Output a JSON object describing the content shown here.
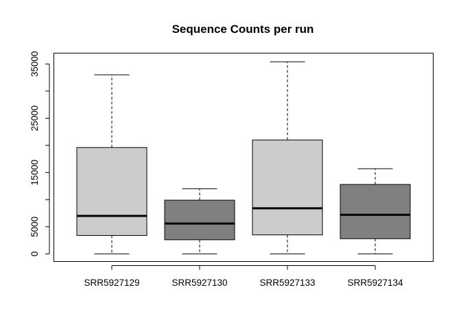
{
  "chart_data": {
    "type": "boxplot",
    "title": "Sequence Counts per run",
    "xlabel": "",
    "ylabel": "",
    "categories": [
      "SRR5927129",
      "SRR5927130",
      "SRR5927133",
      "SRR5927134"
    ],
    "boxes": [
      {
        "name": "SRR5927129",
        "min": 0,
        "q1": 3400,
        "median": 7000,
        "q3": 19600,
        "max": 33000,
        "color": "#cccccc"
      },
      {
        "name": "SRR5927130",
        "min": 0,
        "q1": 2600,
        "median": 5600,
        "q3": 9900,
        "max": 12000,
        "color": "#808080"
      },
      {
        "name": "SRR5927133",
        "min": 0,
        "q1": 3500,
        "median": 8400,
        "q3": 21000,
        "max": 35400,
        "color": "#cccccc"
      },
      {
        "name": "SRR5927134",
        "min": 0,
        "q1": 2800,
        "median": 7200,
        "q3": 12800,
        "max": 15700,
        "color": "#808080"
      }
    ],
    "yticks": [
      0,
      5000,
      15000,
      25000,
      35000
    ],
    "yminor_ticks": [
      10000,
      20000,
      30000
    ],
    "ylim": [
      -1400,
      37000
    ],
    "grid": false,
    "legend": "none"
  }
}
